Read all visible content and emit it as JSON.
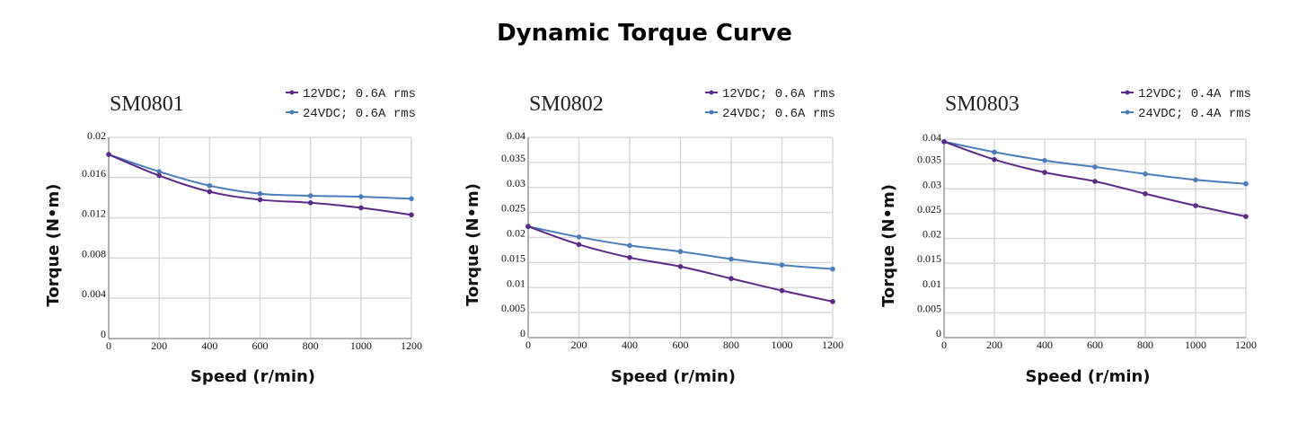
{
  "title": "Dynamic Torque Curve",
  "colors": {
    "series1": "#5b2a86",
    "series2": "#4a7db9",
    "grid": "#d9d9d9",
    "axis": "#999999"
  },
  "chart_data": [
    {
      "type": "line",
      "title": "SM0801",
      "xlabel": "Speed (r/min)",
      "ylabel": "Torque (N•m)",
      "x": [
        0,
        200,
        400,
        600,
        800,
        1000,
        1200
      ],
      "xlim": [
        0,
        1200
      ],
      "ylim": [
        0,
        0.02
      ],
      "yticks": [
        "0",
        "0.004",
        "0.008",
        "0.012",
        "0.016",
        "0.02"
      ],
      "ytick_values": [
        0,
        0.004,
        0.008,
        0.012,
        0.016,
        0.02
      ],
      "xticks": [
        "0",
        "200",
        "400",
        "600",
        "800",
        "1000",
        "1200"
      ],
      "grid": true,
      "legend": "top-right",
      "series": [
        {
          "name": "12VDC; 0.6A rms",
          "values": [
            0.0183,
            0.0162,
            0.0146,
            0.0138,
            0.0135,
            0.013,
            0.0123
          ]
        },
        {
          "name": "24VDC; 0.6A rms",
          "values": [
            0.0183,
            0.0166,
            0.0152,
            0.0144,
            0.0142,
            0.0141,
            0.0139
          ]
        }
      ]
    },
    {
      "type": "line",
      "title": "SM0802",
      "xlabel": "Speed (r/min)",
      "ylabel": "Torque (N•m)",
      "x": [
        0,
        200,
        400,
        600,
        800,
        1000,
        1200
      ],
      "xlim": [
        0,
        1200
      ],
      "ylim": [
        0,
        0.04
      ],
      "yticks": [
        "0",
        "0.005",
        "0.01",
        "0.015",
        "0.02",
        "0.025",
        "0.03",
        "0.035",
        "0.04"
      ],
      "ytick_values": [
        0,
        0.005,
        0.01,
        0.015,
        0.02,
        0.025,
        0.03,
        0.035,
        0.04
      ],
      "xticks": [
        "0",
        "200",
        "400",
        "600",
        "800",
        "1000",
        "1200"
      ],
      "grid": true,
      "legend": "top-right",
      "series": [
        {
          "name": "12VDC; 0.6A rms",
          "values": [
            0.0222,
            0.0186,
            0.016,
            0.0142,
            0.0118,
            0.0094,
            0.0072
          ]
        },
        {
          "name": "24VDC; 0.6A rms",
          "values": [
            0.0222,
            0.0201,
            0.0184,
            0.0172,
            0.0157,
            0.0145,
            0.0137
          ]
        }
      ]
    },
    {
      "type": "line",
      "title": "SM0803",
      "xlabel": "Speed (r/min)",
      "ylabel": "Torque (N•m)",
      "x": [
        0,
        200,
        400,
        600,
        800,
        1000,
        1200
      ],
      "xlim": [
        0,
        1200
      ],
      "ylim": [
        0,
        0.04
      ],
      "yticks": [
        "0",
        "0.005",
        "0.01",
        "0.015",
        "0.02",
        "0.025",
        "0.03",
        "0.035",
        "0.04"
      ],
      "ytick_values": [
        0,
        0.005,
        0.01,
        0.015,
        0.02,
        0.025,
        0.03,
        0.035,
        0.04
      ],
      "xticks": [
        "0",
        "200",
        "400",
        "600",
        "800",
        "1000",
        "1200"
      ],
      "grid": true,
      "legend": "top-right",
      "series": [
        {
          "name": "12VDC; 0.4A rms",
          "values": [
            0.0395,
            0.0359,
            0.0333,
            0.0315,
            0.029,
            0.0266,
            0.0244
          ]
        },
        {
          "name": "24VDC; 0.4A rms",
          "values": [
            0.0395,
            0.0374,
            0.0357,
            0.0344,
            0.033,
            0.0318,
            0.031
          ]
        }
      ]
    }
  ]
}
